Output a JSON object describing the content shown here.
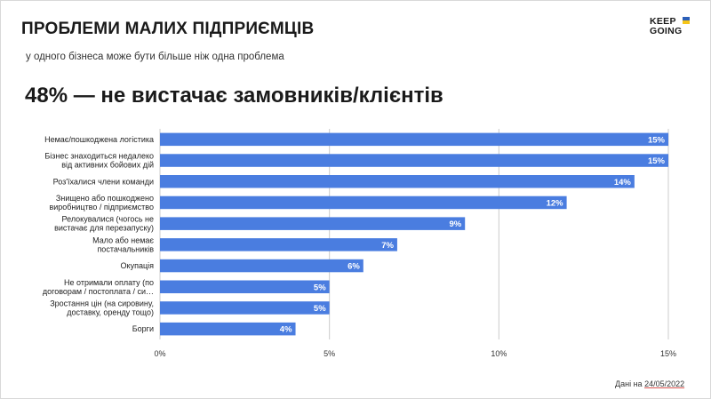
{
  "header": {
    "title": "ПРОБЛЕМИ МАЛИХ ПІДПРИЄМЦІВ",
    "subtitle": "у одного бізнеса може бути більше ніж одна проблема",
    "headline": "48% — не вистачає замовників/клієнтів"
  },
  "logo": {
    "line1": "KEEP",
    "line2": "GOING"
  },
  "footer": {
    "prefix": "Дані на",
    "date": "24/05/2022"
  },
  "colors": {
    "bar": "#4a7de0",
    "grid": "#cccccc",
    "flag_blue": "#2b5fb8",
    "flag_yellow": "#f5c518"
  },
  "chart_data": {
    "type": "bar",
    "orientation": "horizontal",
    "categories": [
      [
        "Немає/пошкоджена логістика"
      ],
      [
        "Бізнес знаходиться недалеко",
        "від активних бойових дій"
      ],
      [
        "Роз'їхалися члени команди"
      ],
      [
        "Знищено або пошкоджено",
        "виробництво / підприємство"
      ],
      [
        "Релокувалися (чогось не",
        "вистачає для перезапуску)"
      ],
      [
        "Мало або немає",
        "постачальників"
      ],
      [
        "Окупація"
      ],
      [
        "Не отримали оплату (по",
        "договорам / постоплата / си…"
      ],
      [
        "Зростання цін (на сировину,",
        "доставку, оренду тощо)"
      ],
      [
        "Борги"
      ]
    ],
    "values": [
      15,
      15,
      14,
      12,
      9,
      7,
      6,
      5,
      5,
      4
    ],
    "value_labels": [
      "15%",
      "15%",
      "14%",
      "12%",
      "9%",
      "7%",
      "6%",
      "5%",
      "5%",
      "4%"
    ],
    "xlim": [
      0,
      15
    ],
    "xticks": [
      0,
      5,
      10,
      15
    ],
    "xtick_labels": [
      "0%",
      "5%",
      "10%",
      "15%"
    ],
    "grid": true
  }
}
